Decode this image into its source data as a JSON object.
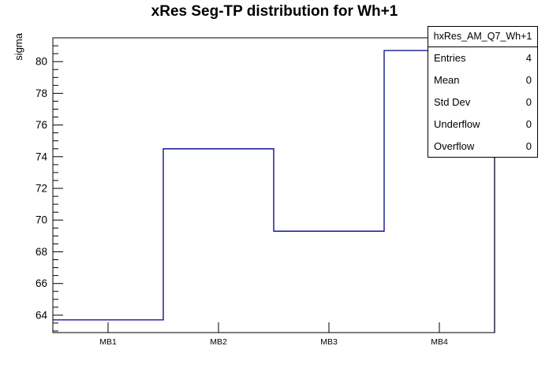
{
  "title": "xRes Seg-TP distribution for Wh+1",
  "y_axis_title": "sigma",
  "stats_box": {
    "title": "hxRes_AM_Q7_Wh+1",
    "rows": [
      {
        "label": "Entries",
        "value": "4"
      },
      {
        "label": "Mean",
        "value": "0"
      },
      {
        "label": "Std Dev",
        "value": "0"
      },
      {
        "label": "Underflow",
        "value": "0"
      },
      {
        "label": "Overflow",
        "value": "0"
      }
    ]
  },
  "chart_data": {
    "type": "bar",
    "style": "step-histogram",
    "title": "xRes Seg-TP distribution for Wh+1",
    "xlabel": "",
    "ylabel": "sigma",
    "categories": [
      "MB1",
      "MB2",
      "MB3",
      "MB4"
    ],
    "values": [
      63.7,
      74.5,
      69.3,
      80.7
    ],
    "ylim": [
      62.9,
      81.5
    ],
    "y_major_ticks": [
      64,
      66,
      68,
      70,
      72,
      74,
      76,
      78,
      80
    ],
    "y_minor_step": 0.5,
    "grid": false,
    "legend": false,
    "line_color": "#00008c",
    "frame_color": "#000000",
    "text_color": "#000000"
  }
}
